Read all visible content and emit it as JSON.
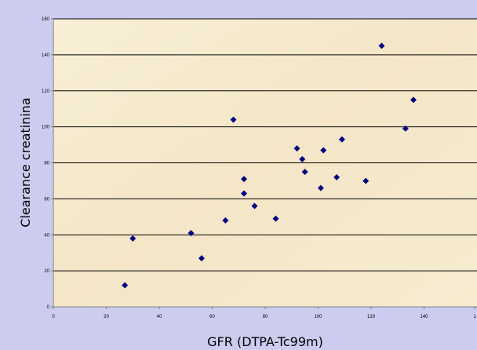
{
  "chart_data": {
    "type": "scatter",
    "title": "",
    "xlabel": "GFR (DTPA-Tc99m)",
    "ylabel": "Clearance creatinina",
    "xlim": [
      0,
      160
    ],
    "ylim": [
      0,
      160
    ],
    "x_ticks": [
      "0",
      "20",
      "40",
      "60",
      "80",
      "100",
      "120",
      "140",
      "1"
    ],
    "y_ticks": [
      "0",
      "20",
      "40",
      "60",
      "80",
      "100",
      "120",
      "140",
      "160"
    ],
    "grid": "horizontal",
    "legend": "none",
    "marker": "diamond",
    "colors": {
      "marker": "#000080",
      "plot_background": "#f6ecd2",
      "frame_background": "#ccccf0",
      "gridline": "#000000"
    },
    "series": [
      {
        "points": [
          [
            27,
            12
          ],
          [
            30,
            38
          ],
          [
            52,
            41
          ],
          [
            56,
            27
          ],
          [
            65,
            48
          ],
          [
            68,
            104
          ],
          [
            72,
            71
          ],
          [
            72,
            63
          ],
          [
            76,
            56
          ],
          [
            84,
            49
          ],
          [
            92,
            88
          ],
          [
            94,
            82
          ],
          [
            95,
            75
          ],
          [
            101,
            66
          ],
          [
            102,
            87
          ],
          [
            107,
            72
          ],
          [
            109,
            93
          ],
          [
            118,
            70
          ],
          [
            124,
            145
          ],
          [
            133,
            99
          ],
          [
            136,
            115
          ]
        ]
      }
    ]
  }
}
